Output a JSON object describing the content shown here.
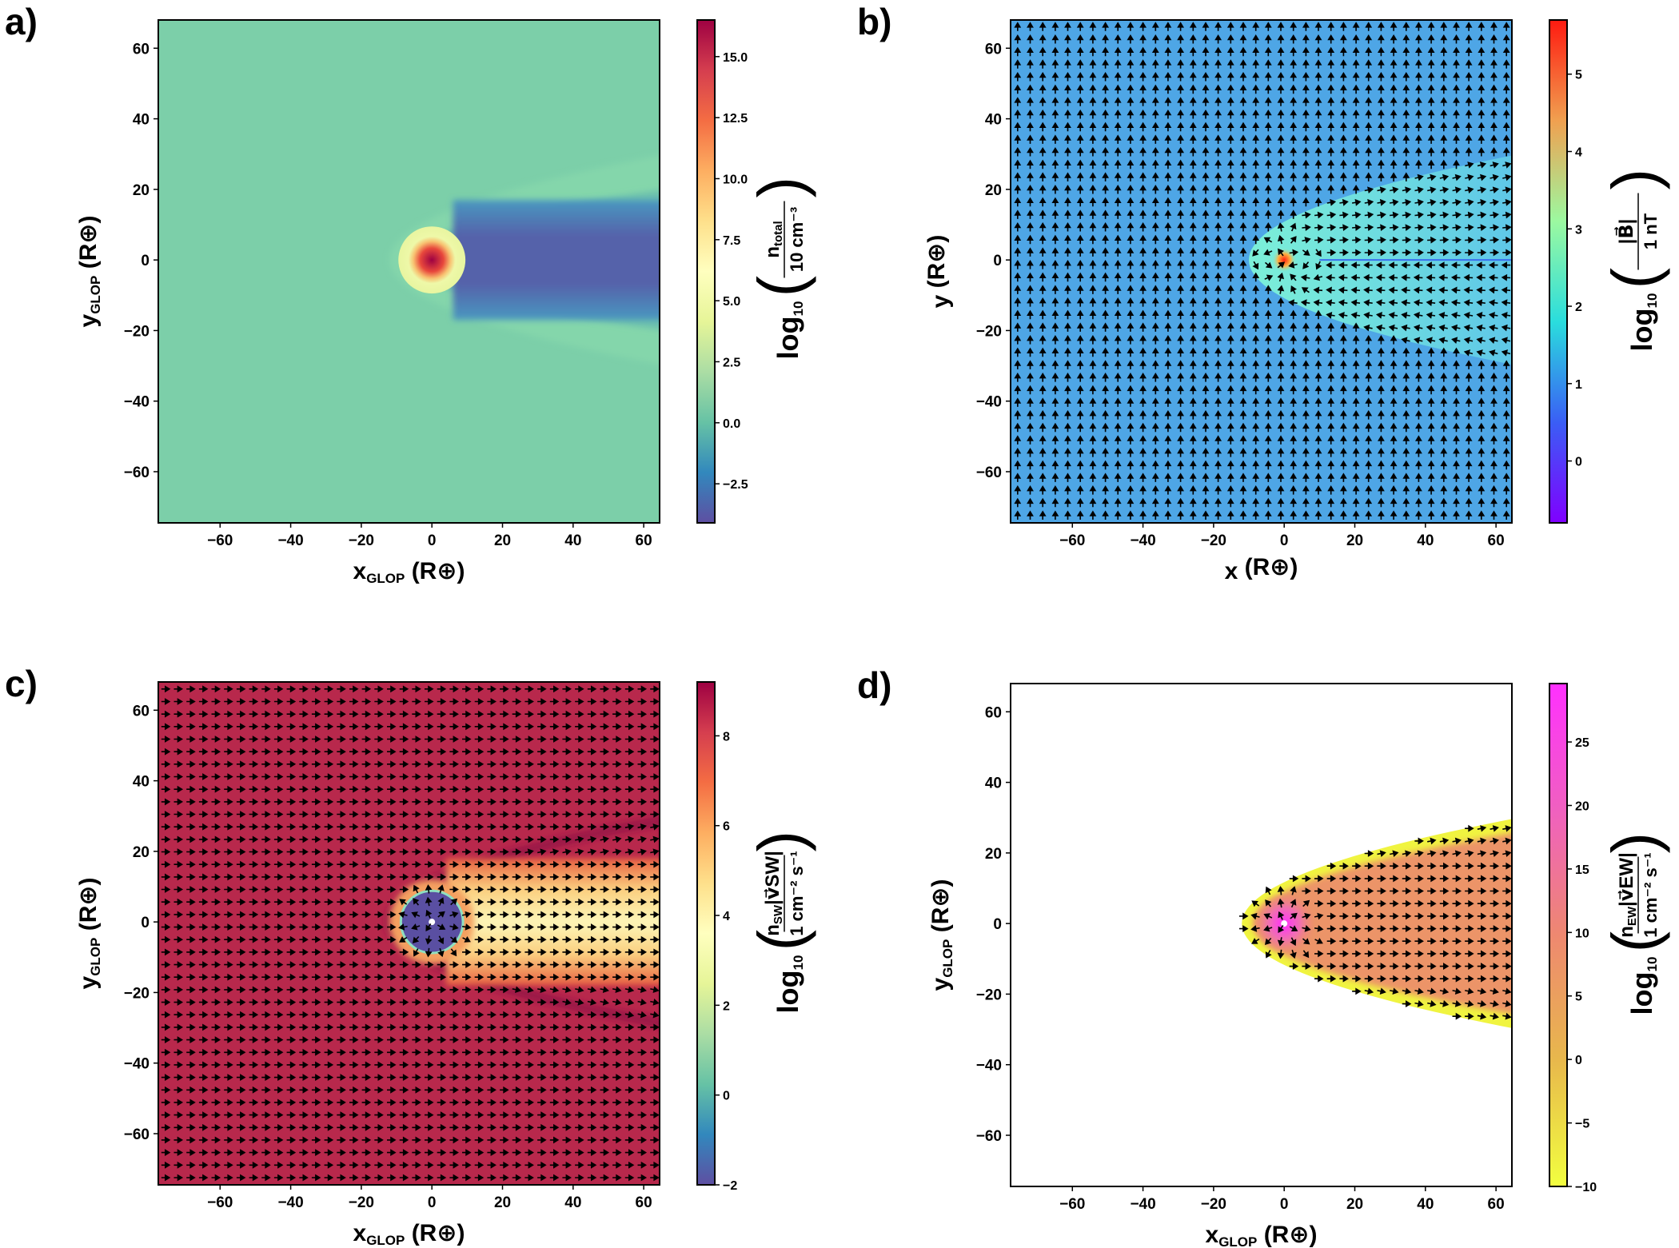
{
  "chart_data": [
    {
      "type": "heatmap",
      "panel_label": "a)",
      "xlabel": {
        "main": "x",
        "sub": "GLOP",
        "unit": " (R⊕)"
      },
      "ylabel": {
        "main": "y",
        "sub": "GLOP",
        "unit": " (R⊕)"
      },
      "xlim": [
        -77.5,
        64.5
      ],
      "ylim": [
        -74.5,
        68
      ],
      "xticks": [
        "−60",
        "−40",
        "−20",
        "0",
        "20",
        "40",
        "60"
      ],
      "yticks": [
        "−60",
        "−40",
        "−20",
        "0",
        "20",
        "40",
        "60"
      ],
      "colormap": "Spectral_r",
      "colorbar": {
        "range": [
          -4.1,
          16.5
        ],
        "ticks": [
          -2.5,
          0.0,
          2.5,
          5.0,
          7.5,
          10.0,
          12.5,
          15.0
        ],
        "tick_labels": [
          "−2.5",
          "0.0",
          "2.5",
          "5.0",
          "7.5",
          "10.0",
          "12.5",
          "15.0"
        ],
        "label": {
          "log": "log",
          "log_sub": "10",
          "num": "n",
          "num_sub": "total",
          "num_extra": "",
          "den": "10 cm⁻³"
        }
      },
      "quiver": false
    },
    {
      "type": "heatmap",
      "panel_label": "b)",
      "xlabel": {
        "main": "x",
        "sub": "",
        "unit": " (R⊕)"
      },
      "ylabel": {
        "main": "y",
        "sub": "",
        "unit": " (R⊕)"
      },
      "xlim": [
        -77.5,
        64.5
      ],
      "ylim": [
        -74.5,
        68
      ],
      "xticks": [
        "−60",
        "−40",
        "−20",
        "0",
        "20",
        "40",
        "60"
      ],
      "yticks": [
        "−60",
        "−40",
        "−20",
        "0",
        "20",
        "40",
        "60"
      ],
      "colormap": "rainbow",
      "colorbar": {
        "range": [
          -0.8,
          5.7
        ],
        "ticks": [
          0,
          1,
          2,
          3,
          4,
          5
        ],
        "tick_labels": [
          "0",
          "1",
          "2",
          "3",
          "4",
          "5"
        ],
        "label": {
          "log": "log",
          "log_sub": "10",
          "num": "|B⃗|",
          "num_sub": "",
          "num_extra": "",
          "den": "1 nT"
        }
      },
      "quiver": true
    },
    {
      "type": "heatmap",
      "panel_label": "c)",
      "xlabel": {
        "main": "x",
        "sub": "GLOP",
        "unit": " (R⊕)"
      },
      "ylabel": {
        "main": "y",
        "sub": "GLOP",
        "unit": " (R⊕)"
      },
      "xlim": [
        -77.5,
        64.5
      ],
      "ylim": [
        -74.5,
        68
      ],
      "xticks": [
        "−60",
        "−40",
        "−20",
        "0",
        "20",
        "40",
        "60"
      ],
      "yticks": [
        "−60",
        "−40",
        "−20",
        "0",
        "20",
        "40",
        "60"
      ],
      "colormap": "Spectral_r",
      "colorbar": {
        "range": [
          -2,
          9.2
        ],
        "ticks": [
          -2,
          0,
          2,
          4,
          6,
          8
        ],
        "tick_labels": [
          "−2",
          "0",
          "2",
          "4",
          "6",
          "8"
        ],
        "label": {
          "log": "log",
          "log_sub": "10",
          "num": "n",
          "num_sub": "SW",
          "num_extra": "|v⃗SW|",
          "den": "1 cm⁻² s⁻¹"
        }
      },
      "quiver": true
    },
    {
      "type": "heatmap",
      "panel_label": "d)",
      "xlabel": {
        "main": "x",
        "sub": "GLOP",
        "unit": " (R⊕)"
      },
      "ylabel": {
        "main": "y",
        "sub": "GLOP",
        "unit": " (R⊕)"
      },
      "xlim": [
        -77.5,
        64.5
      ],
      "ylim": [
        -74.5,
        68
      ],
      "xticks": [
        "−60",
        "−40",
        "−20",
        "0",
        "20",
        "40",
        "60"
      ],
      "yticks": [
        "−60",
        "−40",
        "−20",
        "0",
        "20",
        "40",
        "60"
      ],
      "colormap": "spring_r",
      "colorbar": {
        "range": [
          -10,
          29.6
        ],
        "ticks": [
          -10,
          -5,
          0,
          5,
          10,
          15,
          20,
          25
        ],
        "tick_labels": [
          "−10",
          "−5",
          "0",
          "5",
          "10",
          "15",
          "20",
          "25"
        ],
        "label": {
          "log": "log",
          "log_sub": "10",
          "num": "n",
          "num_sub": "EW",
          "num_extra": "|v⃗EW|",
          "den": "1 cm⁻² s⁻¹"
        }
      },
      "quiver": true
    }
  ]
}
